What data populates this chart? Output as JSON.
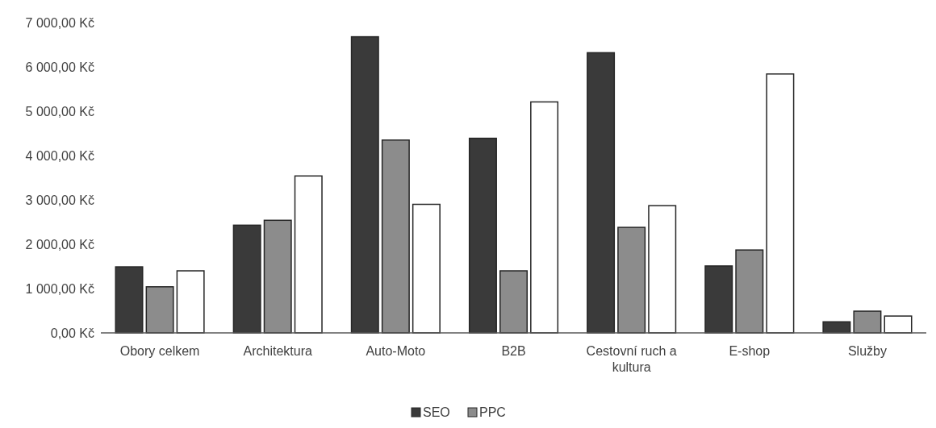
{
  "chart_data": {
    "type": "bar",
    "categories": [
      "Obory celkem",
      "Architektura",
      "Auto-Moto",
      "B2B",
      "Cestovní ruch a kultura",
      "E-shop",
      "Služby"
    ],
    "series": [
      {
        "name": "SEO",
        "color": "#3a3a3a",
        "values": [
          1490,
          2430,
          6680,
          4390,
          6320,
          1510,
          250
        ]
      },
      {
        "name": "PPC",
        "color": "#8c8c8c",
        "values": [
          1040,
          2540,
          4350,
          1400,
          2380,
          1870,
          490
        ]
      },
      {
        "color": "#ffffff",
        "values": [
          1400,
          3540,
          2900,
          5210,
          2870,
          5840,
          380
        ]
      }
    ],
    "ylim": [
      0,
      7000
    ],
    "yticks": [
      {
        "value": 0,
        "label": "0,00 Kč"
      },
      {
        "value": 1000,
        "label": "1 000,00 Kč"
      },
      {
        "value": 2000,
        "label": "2 000,00 Kč"
      },
      {
        "value": 3000,
        "label": "3 000,00 Kč"
      },
      {
        "value": 4000,
        "label": "4 000,00 Kč"
      },
      {
        "value": 5000,
        "label": "5 000,00 Kč"
      },
      {
        "value": 6000,
        "label": "6 000,00 Kč"
      },
      {
        "value": 7000,
        "label": "7 000,00 Kč"
      }
    ],
    "grid": false,
    "legend": "bottom"
  }
}
